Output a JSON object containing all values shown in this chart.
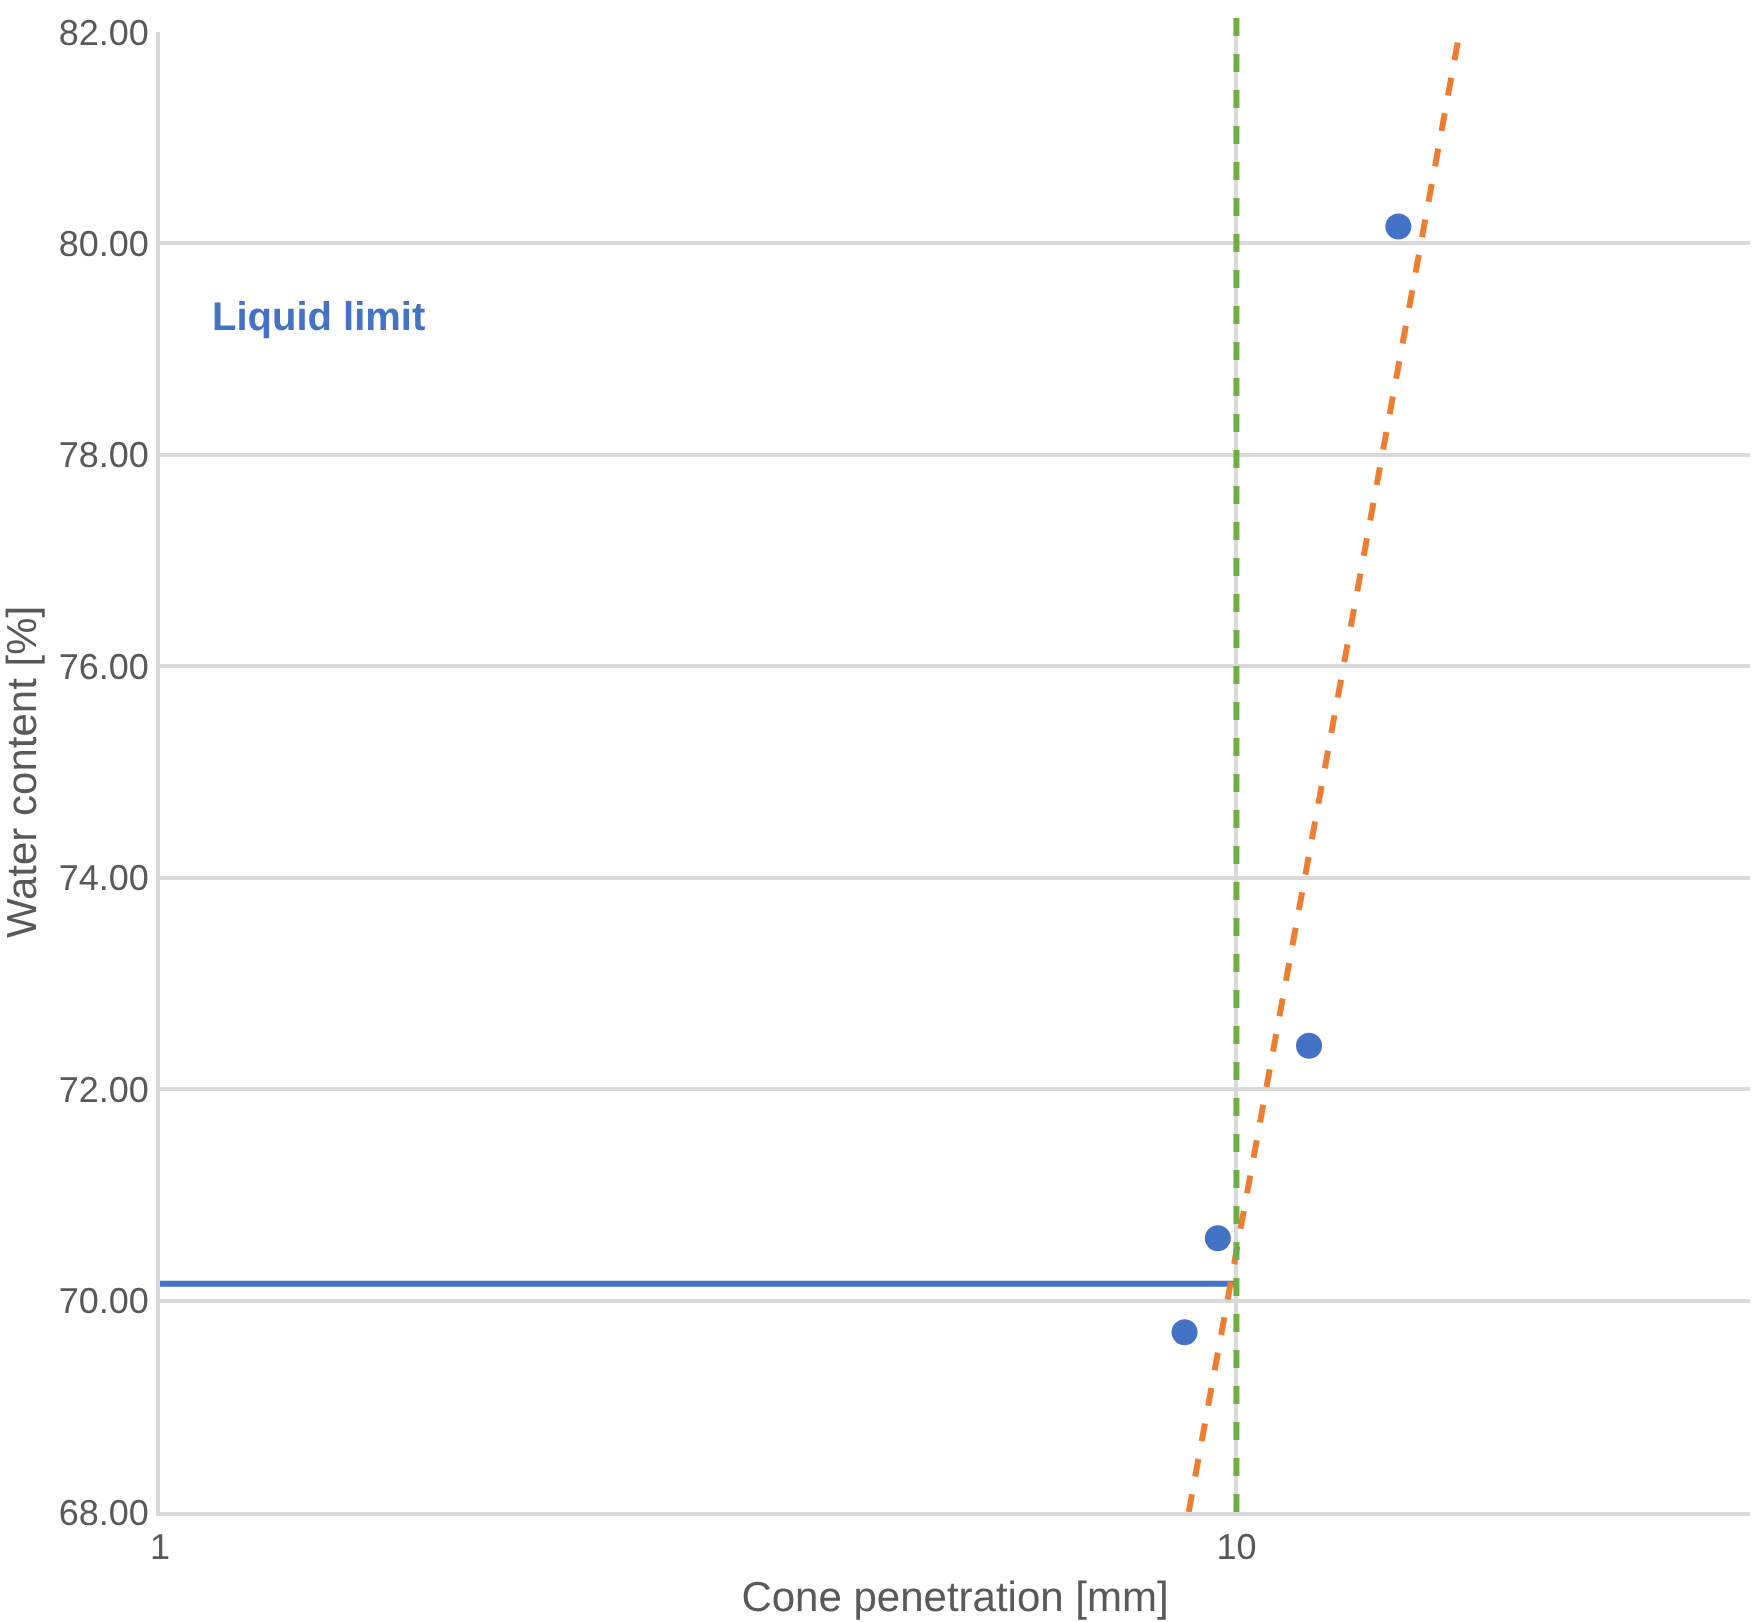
{
  "chart_data": {
    "type": "scatter",
    "xlabel": "Cone penetration [mm]",
    "ylabel": "Water content [%]",
    "log": "x",
    "xlim": [
      1,
      30
    ],
    "xticks": [
      1,
      10
    ],
    "ylim": [
      68,
      82
    ],
    "yticks": [
      {
        "value": 68,
        "label": "68.00"
      },
      {
        "value": 70,
        "label": "70.00"
      },
      {
        "value": 72,
        "label": "72.00"
      },
      {
        "value": 74,
        "label": "74.00"
      },
      {
        "value": 76,
        "label": "76.00"
      },
      {
        "value": 78,
        "label": "78.00"
      },
      {
        "value": 80,
        "label": "80.00"
      },
      {
        "value": 82,
        "label": "82.00"
      }
    ],
    "grid": true,
    "series": [
      {
        "marker": "circle",
        "color": "#4472c4",
        "x": [
          8.95,
          9.61,
          11.68,
          14.14
        ],
        "values": [
          69.7,
          70.59,
          72.41,
          80.16
        ]
      },
      {
        "type": "line",
        "marker": "none",
        "line_style": "solid",
        "color": "#4472c4",
        "x": [
          1,
          10
        ],
        "values": [
          70.16,
          70.16
        ]
      },
      {
        "type": "line",
        "marker": "none",
        "line_style": "dashed",
        "color": "#ed7d31",
        "x": [
          9.03,
          16.12
        ],
        "values": [
          68,
          82
        ]
      }
    ],
    "ref_lines": [
      {
        "axis": "x",
        "value": 10,
        "color": "#70ad47",
        "line_style": "dashed"
      }
    ],
    "annotations": [
      "Liquid limit"
    ]
  }
}
